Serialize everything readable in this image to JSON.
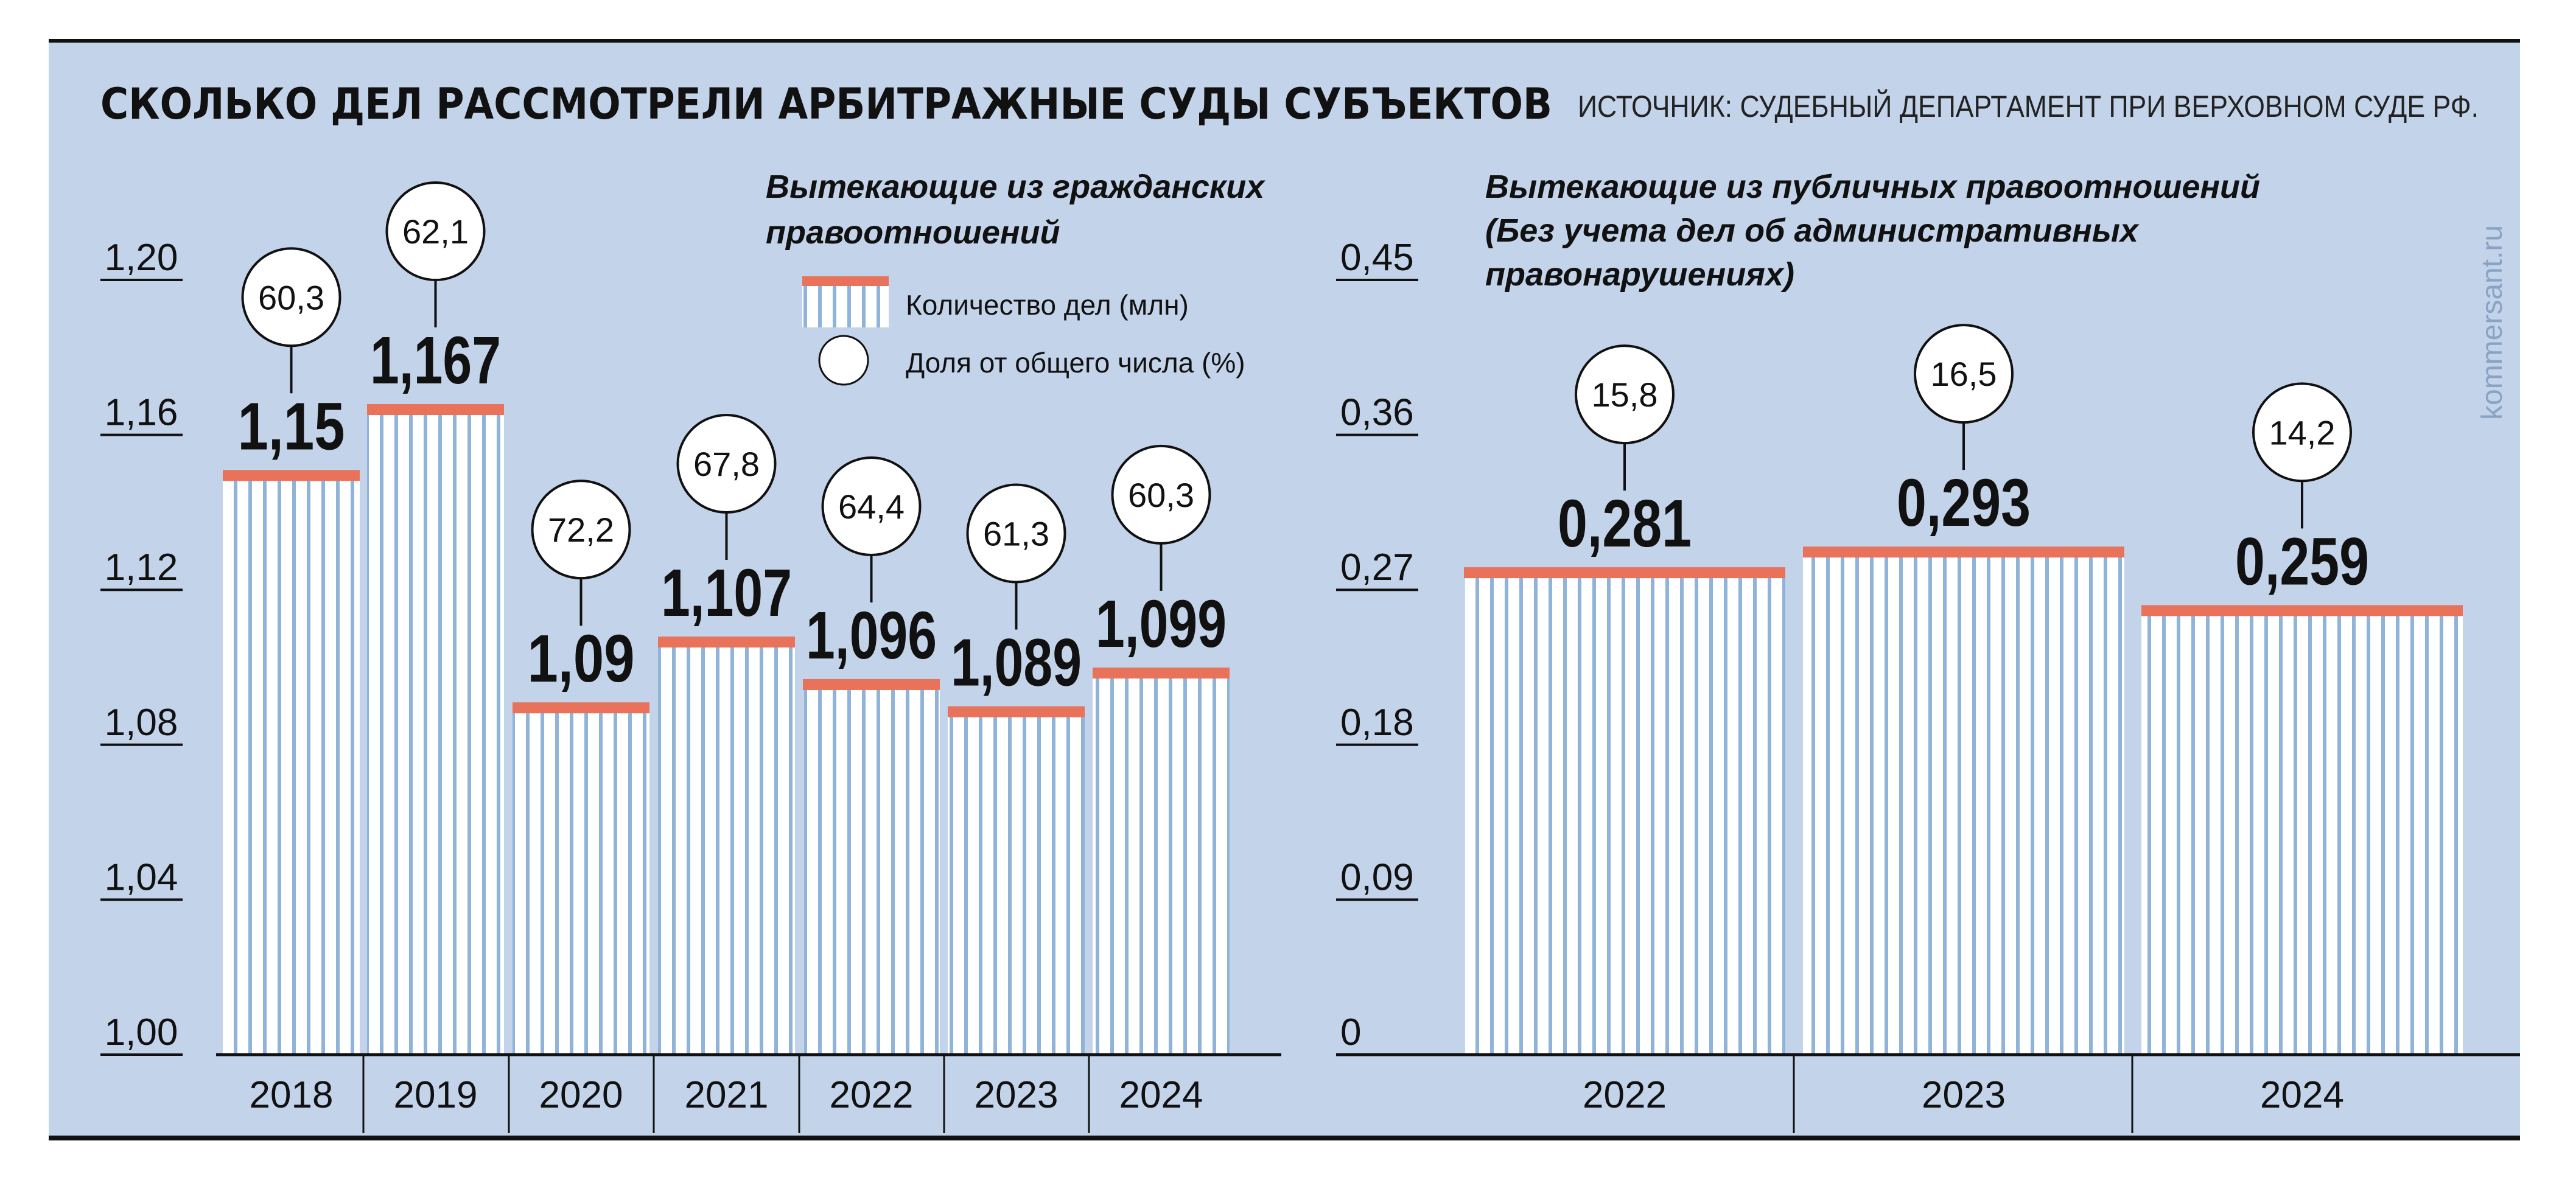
{
  "header": {
    "title": "СКОЛЬКО ДЕЛ РАССМОТРЕЛИ АРБИТРАЖНЫЕ СУДЫ СУБЪЕКТОВ",
    "source": "ИСТОЧНИК: СУДЕБНЫЙ ДЕПАРТАМЕНТ ПРИ ВЕРХОВНОМ СУДЕ РФ.",
    "watermark": "kommersant.ru"
  },
  "legend": {
    "count_label": "Количество дел (млн)",
    "share_label": "Доля от общего числа (%)"
  },
  "colors": {
    "background": "#c3d3e9",
    "bar_cap": "#e9735a",
    "bar_stripe": "#8fb3d9",
    "text": "#111111",
    "bubble": "#ffffff"
  },
  "chart_data": [
    {
      "type": "bar",
      "title": "Вытекающие из гражданских правоотношений",
      "unit": "млн",
      "categories": [
        "2018",
        "2019",
        "2020",
        "2021",
        "2022",
        "2023",
        "2024"
      ],
      "values": [
        1.15,
        1.167,
        1.09,
        1.107,
        1.096,
        1.089,
        1.099
      ],
      "value_labels": [
        "1,15",
        "1,167",
        "1,09",
        "1,107",
        "1,096",
        "1,089",
        "1,099"
      ],
      "share": [
        60.3,
        62.1,
        72.2,
        67.8,
        64.4,
        61.3,
        60.3
      ],
      "share_labels": [
        "60,3",
        "62,1",
        "72,2",
        "67,8",
        "64,4",
        "61,3",
        "60,3"
      ],
      "ylim": [
        1.0,
        1.2
      ],
      "yticks": [
        1.0,
        1.04,
        1.08,
        1.12,
        1.16,
        1.2
      ],
      "ytick_labels": [
        "1,00",
        "1,04",
        "1,08",
        "1,12",
        "1,16",
        "1,20"
      ]
    },
    {
      "type": "bar",
      "title": "Вытекающие из публичных правоотношений (Без учета дел об административных правонарушениях)",
      "title_lines": [
        "Вытекающие из публичных правоотношений",
        "(Без учета дел об административных",
        "правонарушениях)"
      ],
      "unit": "млн",
      "categories": [
        "2022",
        "2023",
        "2024"
      ],
      "values": [
        0.281,
        0.293,
        0.259
      ],
      "value_labels": [
        "0,281",
        "0,293",
        "0,259"
      ],
      "share": [
        15.8,
        16.5,
        14.2
      ],
      "share_labels": [
        "15,8",
        "16,5",
        "14,2"
      ],
      "ylim": [
        0,
        0.45
      ],
      "yticks": [
        0,
        0.09,
        0.18,
        0.27,
        0.36,
        0.45
      ],
      "ytick_labels": [
        "0",
        "0,09",
        "0,18",
        "0,27",
        "0,36",
        "0,45"
      ]
    }
  ]
}
